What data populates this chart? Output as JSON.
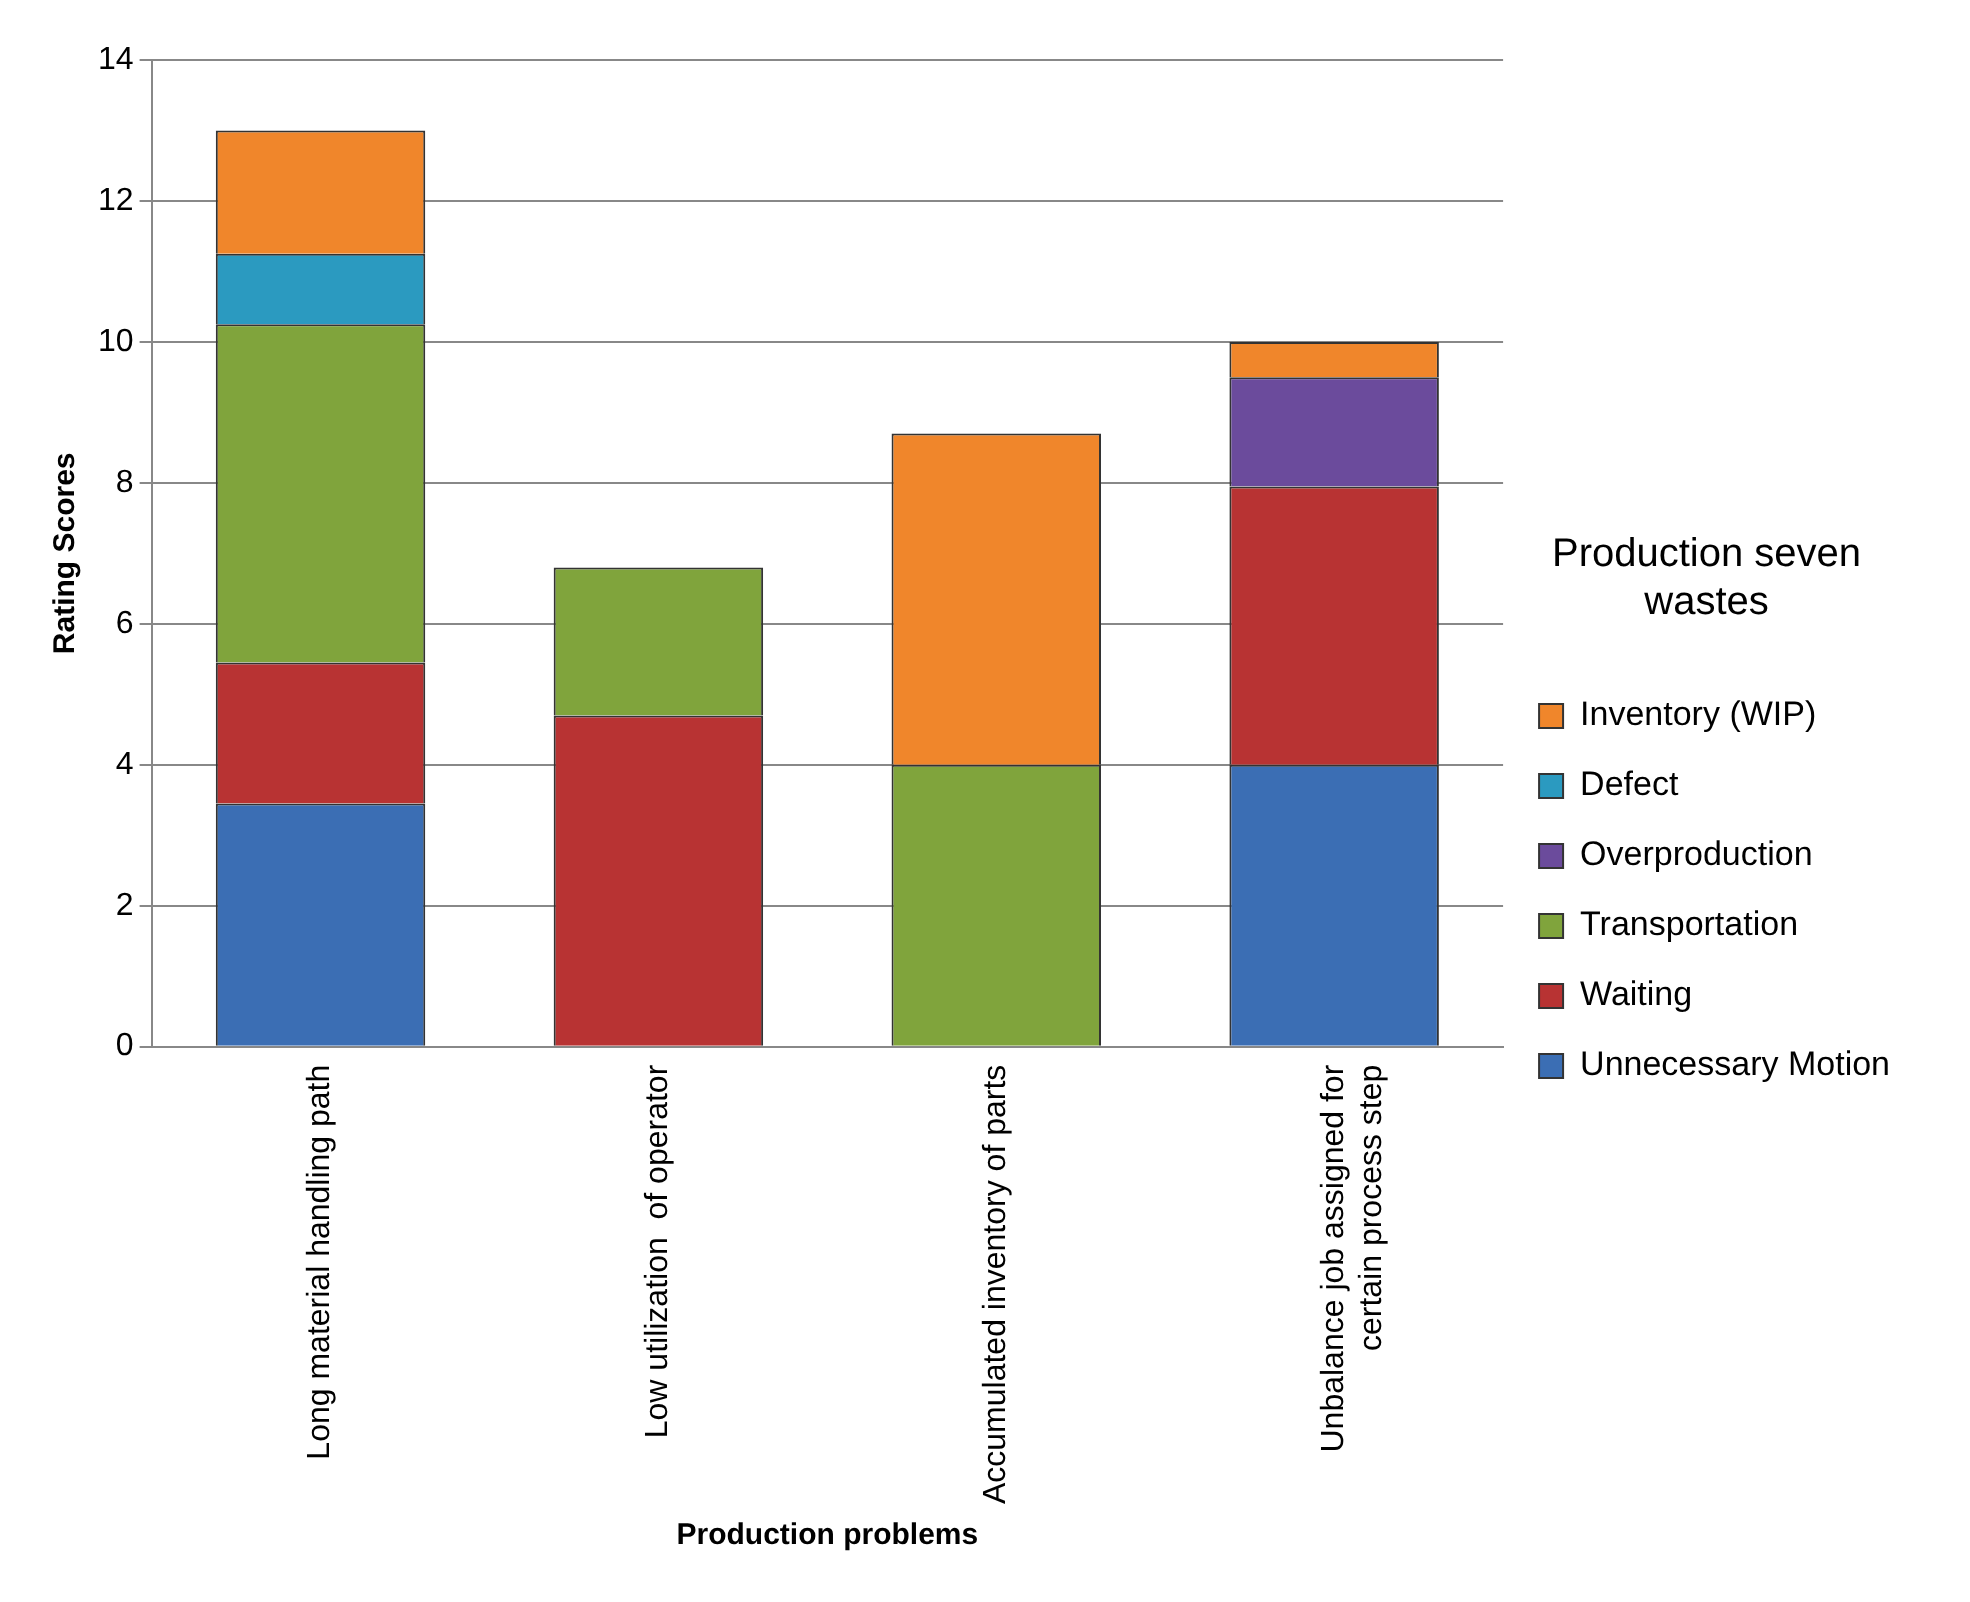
{
  "chart_data": {
    "type": "bar",
    "stacked": true,
    "xlabel": "Production problems",
    "ylabel": "Rating Scores",
    "legend_title": "Production seven wastes",
    "legend": "right",
    "categories": [
      "Long material handling path",
      "Low utilization  of operator",
      "Accumulated inventory of parts",
      "Unbalance job assigned for\ncertain process step"
    ],
    "series": [
      {
        "name": "Unnecessary Motion",
        "color": "#3b6eb4",
        "values": [
          3.45,
          null,
          null,
          4
        ]
      },
      {
        "name": "Waiting",
        "color": "#b83333",
        "values": [
          2,
          4.7,
          null,
          3.95
        ]
      },
      {
        "name": "Transportation",
        "color": "#80a43c",
        "values": [
          4.8,
          2.1,
          4,
          null
        ]
      },
      {
        "name": "Overproduction",
        "color": "#6b4b9c",
        "values": [
          null,
          null,
          null,
          1.55
        ]
      },
      {
        "name": "Defect",
        "color": "#2b9ac0",
        "values": [
          1,
          null,
          null,
          null
        ]
      },
      {
        "name": "Inventory (WIP)",
        "color": "#f0862b",
        "values": [
          1.75,
          null,
          4.7,
          0.5
        ]
      }
    ],
    "ylim": [
      0,
      14
    ],
    "yticks": [
      0,
      2,
      4,
      6,
      8,
      10,
      12,
      14
    ],
    "grid": "y"
  }
}
